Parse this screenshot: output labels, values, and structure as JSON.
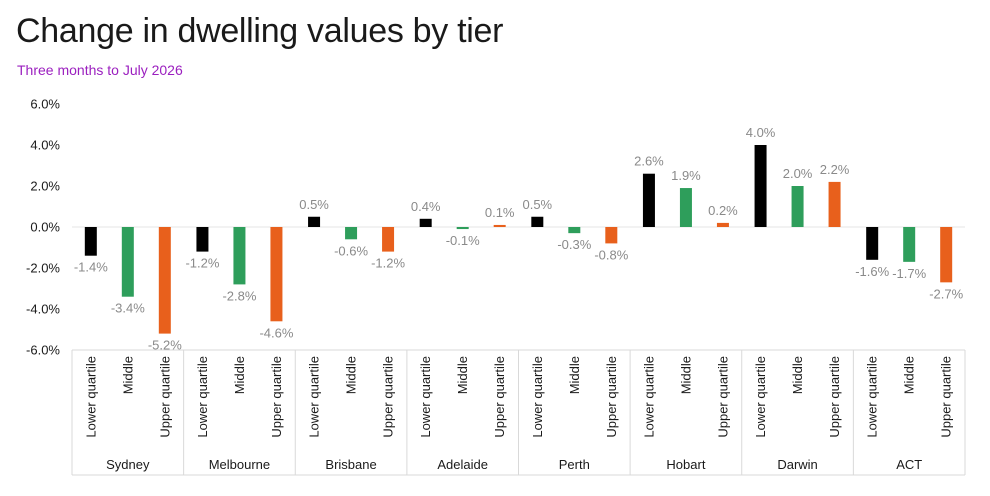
{
  "header": {
    "title": "Change in dwelling values by tier",
    "subtitle": "Three months to July 2026"
  },
  "colors": {
    "Lower quartile": "#000000",
    "Middle": "#2e9e5b",
    "Upper quartile": "#e8601c",
    "subtitle": "#9b1fbf",
    "data_label": "#8a8a8a"
  },
  "chart_data": {
    "type": "bar",
    "title": "Change in dwelling values by tier",
    "subtitle": "Three months to July 2026",
    "ylim": [
      -6.0,
      6.0
    ],
    "yticks": [
      "6.0%",
      "4.0%",
      "2.0%",
      "0.0%",
      "-2.0%",
      "-4.0%",
      "-6.0%"
    ],
    "ytick_values": [
      6,
      4,
      2,
      0,
      -2,
      -4,
      -6
    ],
    "grid": false,
    "tiers": [
      "Lower quartile",
      "Middle",
      "Upper quartile"
    ],
    "groups": [
      {
        "name": "Sydney",
        "values": [
          -1.4,
          -3.4,
          -5.2
        ],
        "labels": [
          "-1.4%",
          "-3.4%",
          "-5.2%"
        ]
      },
      {
        "name": "Melbourne",
        "values": [
          -1.2,
          -2.8,
          -4.6
        ],
        "labels": [
          "-1.2%",
          "-2.8%",
          "-4.6%"
        ]
      },
      {
        "name": "Brisbane",
        "values": [
          0.5,
          -0.6,
          -1.2
        ],
        "labels": [
          "0.5%",
          "-0.6%",
          "-1.2%"
        ]
      },
      {
        "name": "Adelaide",
        "values": [
          0.4,
          -0.1,
          0.1
        ],
        "labels": [
          "0.4%",
          "-0.1%",
          "0.1%"
        ]
      },
      {
        "name": "Perth",
        "values": [
          0.5,
          -0.3,
          -0.8
        ],
        "labels": [
          "0.5%",
          "-0.3%",
          "-0.8%"
        ]
      },
      {
        "name": "Hobart",
        "values": [
          2.6,
          1.9,
          0.2
        ],
        "labels": [
          "2.6%",
          "1.9%",
          "0.2%"
        ]
      },
      {
        "name": "Darwin",
        "values": [
          4.0,
          2.0,
          2.2
        ],
        "labels": [
          "4.0%",
          "2.0%",
          "2.2%"
        ]
      },
      {
        "name": "ACT",
        "values": [
          -1.6,
          -1.7,
          -2.7
        ],
        "labels": [
          "-1.6%",
          "-1.7%",
          "-2.7%"
        ]
      }
    ]
  }
}
